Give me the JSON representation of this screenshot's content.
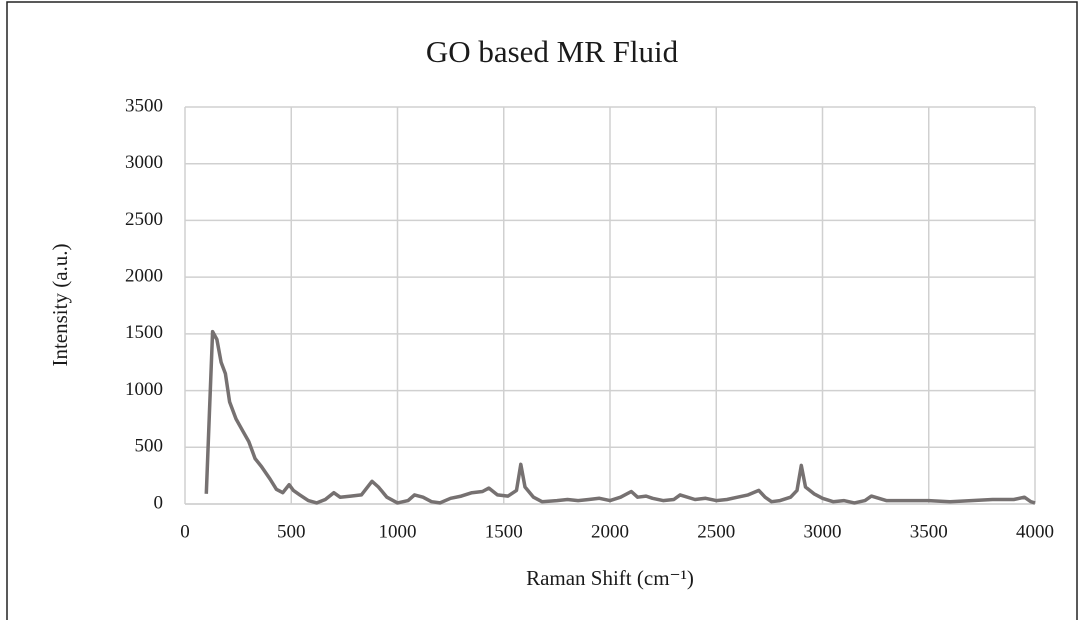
{
  "chart_data": {
    "type": "line",
    "title": "GO based MR Fluid",
    "x_label": "Raman Shift (cm⁻¹)",
    "y_label": "Intensity (a.u.)",
    "x": [
      100,
      115,
      130,
      150,
      170,
      190,
      210,
      240,
      270,
      300,
      330,
      360,
      400,
      430,
      460,
      490,
      510,
      540,
      580,
      620,
      660,
      700,
      730,
      780,
      830,
      880,
      910,
      950,
      1000,
      1050,
      1080,
      1120,
      1160,
      1200,
      1250,
      1300,
      1350,
      1400,
      1430,
      1470,
      1520,
      1560,
      1580,
      1600,
      1640,
      1680,
      1750,
      1800,
      1850,
      1900,
      1950,
      2000,
      2050,
      2100,
      2130,
      2170,
      2200,
      2250,
      2300,
      2330,
      2400,
      2450,
      2500,
      2550,
      2600,
      2650,
      2700,
      2730,
      2760,
      2800,
      2850,
      2880,
      2900,
      2920,
      2960,
      3000,
      3050,
      3100,
      3150,
      3200,
      3230,
      3300,
      3400,
      3500,
      3600,
      3700,
      3800,
      3900,
      3950,
      3980,
      4000
    ],
    "series": [
      {
        "name": "GO based MR Fluid",
        "color": "#767171",
        "values": [
          90,
          800,
          1520,
          1450,
          1250,
          1150,
          900,
          750,
          650,
          550,
          400,
          330,
          220,
          130,
          100,
          170,
          120,
          80,
          30,
          10,
          40,
          100,
          60,
          70,
          80,
          200,
          150,
          60,
          10,
          30,
          80,
          60,
          20,
          10,
          50,
          70,
          100,
          110,
          140,
          80,
          70,
          120,
          350,
          150,
          60,
          20,
          30,
          40,
          30,
          40,
          50,
          30,
          60,
          110,
          60,
          70,
          50,
          30,
          40,
          80,
          40,
          50,
          30,
          40,
          60,
          80,
          120,
          60,
          20,
          30,
          60,
          120,
          340,
          150,
          90,
          50,
          20,
          30,
          10,
          30,
          70,
          30,
          30,
          30,
          20,
          30,
          40,
          40,
          60,
          20,
          10
        ]
      }
    ],
    "xlim": [
      0,
      4000
    ],
    "xticks": [
      0,
      500,
      1000,
      1500,
      2000,
      2500,
      3000,
      3500,
      4000
    ],
    "ylim": [
      0,
      3500
    ],
    "yticks": [
      0,
      500,
      1000,
      1500,
      2000,
      2500,
      3000,
      3500
    ],
    "grid": true
  }
}
